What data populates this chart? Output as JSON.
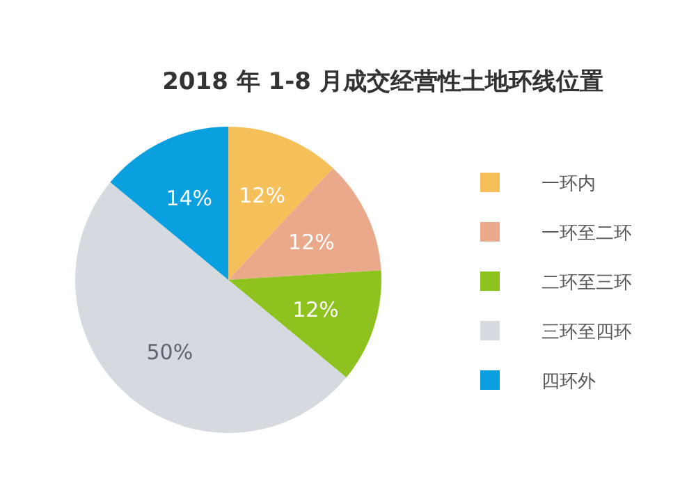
{
  "chart_data": {
    "type": "pie",
    "title": "2018 年 1-8 月成交经营性土地环线位置",
    "categories": [
      "一环内",
      "一环至二环",
      "二环至三环",
      "三环至四环",
      "四环外"
    ],
    "values": [
      12,
      12,
      12,
      50,
      14
    ],
    "value_labels": [
      "12%",
      "12%",
      "12%",
      "50%",
      "14%"
    ],
    "colors": [
      "#f5c05a",
      "#eaa98a",
      "#8dc21f",
      "#d5d9e0",
      "#0aa0e0"
    ],
    "legend": "right"
  }
}
